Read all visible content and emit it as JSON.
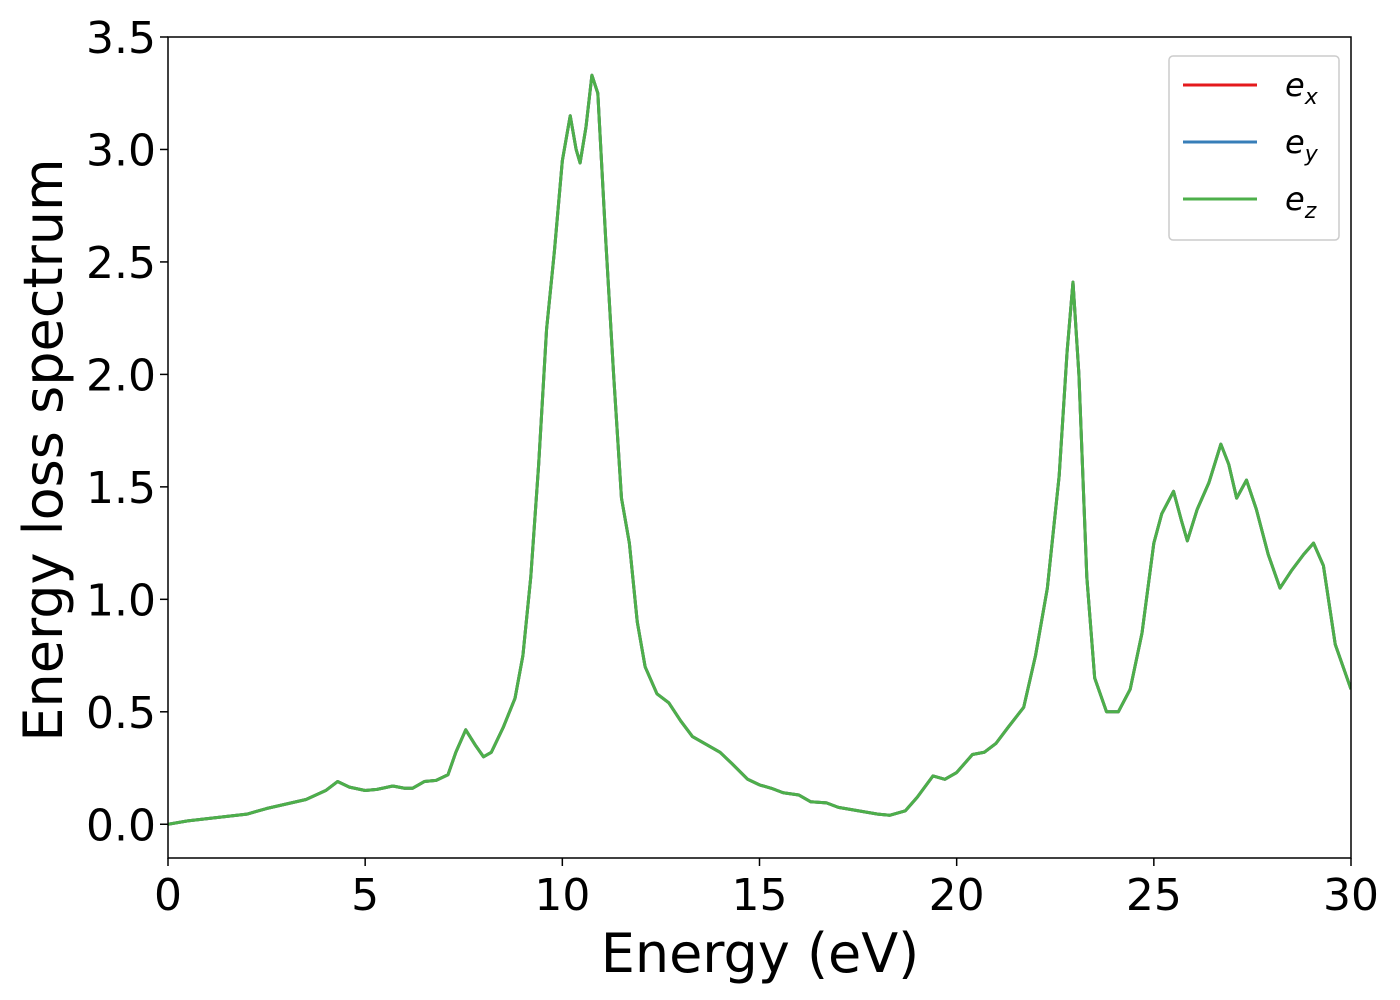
{
  "chart_data": {
    "type": "line",
    "xlabel": "Energy (eV)",
    "ylabel": "Energy loss spectrum",
    "xlim": [
      0,
      30
    ],
    "ylim": [
      -0.15,
      3.5
    ],
    "xticks": [
      0,
      5,
      10,
      15,
      20,
      25,
      30
    ],
    "yticks": [
      {
        "value": 0,
        "label": "0.0"
      },
      0.5,
      {
        "value": 1,
        "label": "1.0"
      },
      1.5,
      {
        "value": 2,
        "label": "2.0"
      },
      2.5,
      {
        "value": 3,
        "label": "3.0"
      },
      3.5
    ],
    "legend": "upper right",
    "x": [
      0,
      0.5,
      1,
      1.5,
      2,
      2.5,
      3,
      3.5,
      4,
      4.3,
      4.6,
      5,
      5.3,
      5.7,
      6,
      6.2,
      6.5,
      6.8,
      7.1,
      7.3,
      7.55,
      7.8,
      8,
      8.2,
      8.5,
      8.8,
      9,
      9.2,
      9.4,
      9.6,
      9.8,
      10,
      10.2,
      10.35,
      10.45,
      10.6,
      10.75,
      10.9,
      11.1,
      11.3,
      11.5,
      11.7,
      11.9,
      12.1,
      12.4,
      12.7,
      13,
      13.3,
      13.7,
      14,
      14.3,
      14.7,
      15,
      15.3,
      15.6,
      16,
      16.3,
      16.7,
      17,
      17.5,
      18,
      18.3,
      18.7,
      19,
      19.4,
      19.7,
      20,
      20.4,
      20.7,
      21,
      21.3,
      21.7,
      22,
      22.3,
      22.6,
      22.8,
      22.95,
      23.1,
      23.3,
      23.5,
      23.8,
      24.1,
      24.4,
      24.7,
      25,
      25.2,
      25.5,
      25.7,
      25.85,
      26.1,
      26.4,
      26.7,
      26.9,
      27.1,
      27.35,
      27.6,
      27.9,
      28.2,
      28.5,
      28.8,
      29.05,
      29.3,
      29.6,
      30
    ],
    "series": [
      {
        "name": "e_x",
        "color": "#e41a1c",
        "values": [
          0,
          0.015,
          0.025,
          0.035,
          0.045,
          0.07,
          0.09,
          0.11,
          0.15,
          0.19,
          0.165,
          0.15,
          0.155,
          0.17,
          0.16,
          0.16,
          0.19,
          0.195,
          0.22,
          0.32,
          0.42,
          0.35,
          0.3,
          0.32,
          0.43,
          0.56,
          0.75,
          1.1,
          1.6,
          2.2,
          2.55,
          2.95,
          3.15,
          3.0,
          2.94,
          3.1,
          3.33,
          3.25,
          2.6,
          2.0,
          1.45,
          1.25,
          0.9,
          0.7,
          0.58,
          0.54,
          0.46,
          0.39,
          0.35,
          0.32,
          0.27,
          0.2,
          0.175,
          0.16,
          0.14,
          0.13,
          0.1,
          0.095,
          0.075,
          0.06,
          0.045,
          0.04,
          0.06,
          0.12,
          0.215,
          0.2,
          0.23,
          0.31,
          0.32,
          0.36,
          0.43,
          0.52,
          0.75,
          1.05,
          1.55,
          2.1,
          2.41,
          2.0,
          1.1,
          0.65,
          0.5,
          0.5,
          0.6,
          0.85,
          1.25,
          1.38,
          1.48,
          1.35,
          1.26,
          1.4,
          1.52,
          1.69,
          1.6,
          1.45,
          1.53,
          1.4,
          1.2,
          1.05,
          1.13,
          1.2,
          1.25,
          1.15,
          0.8,
          0.6
        ]
      },
      {
        "name": "e_y",
        "color": "#377eb8",
        "values": [
          0,
          0.015,
          0.025,
          0.035,
          0.045,
          0.07,
          0.09,
          0.11,
          0.15,
          0.19,
          0.165,
          0.15,
          0.155,
          0.17,
          0.16,
          0.16,
          0.19,
          0.195,
          0.22,
          0.32,
          0.42,
          0.35,
          0.3,
          0.32,
          0.43,
          0.56,
          0.75,
          1.1,
          1.6,
          2.2,
          2.55,
          2.95,
          3.15,
          3.0,
          2.94,
          3.1,
          3.33,
          3.25,
          2.6,
          2.0,
          1.45,
          1.25,
          0.9,
          0.7,
          0.58,
          0.54,
          0.46,
          0.39,
          0.35,
          0.32,
          0.27,
          0.2,
          0.175,
          0.16,
          0.14,
          0.13,
          0.1,
          0.095,
          0.075,
          0.06,
          0.045,
          0.04,
          0.06,
          0.12,
          0.215,
          0.2,
          0.23,
          0.31,
          0.32,
          0.36,
          0.43,
          0.52,
          0.75,
          1.05,
          1.55,
          2.1,
          2.41,
          2.0,
          1.1,
          0.65,
          0.5,
          0.5,
          0.6,
          0.85,
          1.25,
          1.38,
          1.48,
          1.35,
          1.26,
          1.4,
          1.52,
          1.69,
          1.6,
          1.45,
          1.53,
          1.4,
          1.2,
          1.05,
          1.13,
          1.2,
          1.25,
          1.15,
          0.8,
          0.6
        ]
      },
      {
        "name": "e_z",
        "color": "#4daf4a",
        "values": [
          0,
          0.015,
          0.025,
          0.035,
          0.045,
          0.07,
          0.09,
          0.11,
          0.15,
          0.19,
          0.165,
          0.15,
          0.155,
          0.17,
          0.16,
          0.16,
          0.19,
          0.195,
          0.22,
          0.32,
          0.42,
          0.35,
          0.3,
          0.32,
          0.43,
          0.56,
          0.75,
          1.1,
          1.6,
          2.2,
          2.55,
          2.95,
          3.15,
          3.0,
          2.94,
          3.1,
          3.33,
          3.25,
          2.6,
          2.0,
          1.45,
          1.25,
          0.9,
          0.7,
          0.58,
          0.54,
          0.46,
          0.39,
          0.35,
          0.32,
          0.27,
          0.2,
          0.175,
          0.16,
          0.14,
          0.13,
          0.1,
          0.095,
          0.075,
          0.06,
          0.045,
          0.04,
          0.06,
          0.12,
          0.215,
          0.2,
          0.23,
          0.31,
          0.32,
          0.36,
          0.43,
          0.52,
          0.75,
          1.05,
          1.55,
          2.1,
          2.41,
          2.0,
          1.1,
          0.65,
          0.5,
          0.5,
          0.6,
          0.85,
          1.25,
          1.38,
          1.48,
          1.35,
          1.26,
          1.4,
          1.52,
          1.69,
          1.6,
          1.45,
          1.53,
          1.4,
          1.2,
          1.05,
          1.13,
          1.2,
          1.25,
          1.15,
          0.8,
          0.6
        ]
      }
    ]
  }
}
